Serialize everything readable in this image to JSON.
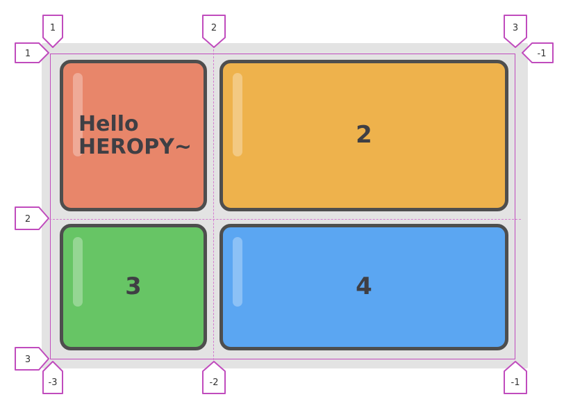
{
  "cells": [
    {
      "label": "Hello\nHEROPY~",
      "color": "#e8866a"
    },
    {
      "label": "2",
      "color": "#eeb24c"
    },
    {
      "label": "3",
      "color": "#67c565"
    },
    {
      "label": "4",
      "color": "#5ba6f2"
    }
  ],
  "column_line_markers": {
    "top": [
      "1",
      "2",
      "3"
    ],
    "bottom": [
      "-3",
      "-2",
      "-1"
    ]
  },
  "row_line_markers": {
    "left": [
      "1",
      "2",
      "3"
    ],
    "right": [
      "-1"
    ]
  },
  "colors": {
    "grid_line": "#c04bbd",
    "marker_stroke": "#c04bbd",
    "cell_border": "#4e4e4e",
    "container_bg": "#e3e3e3"
  }
}
